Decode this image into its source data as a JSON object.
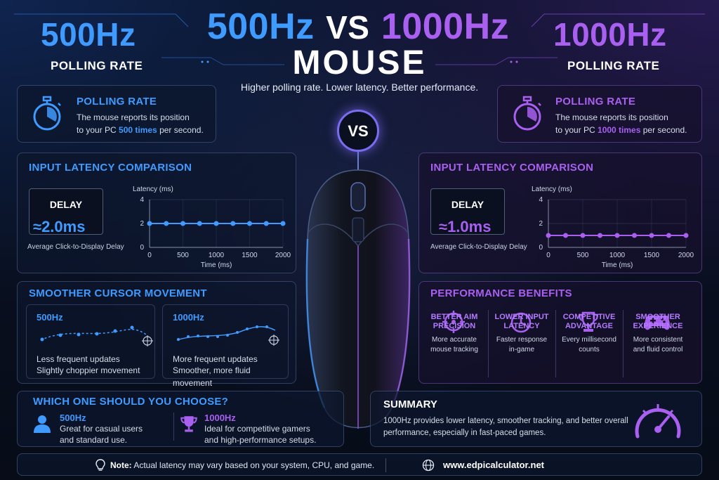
{
  "colors": {
    "blue": "#3f9bff",
    "purple": "#a960f0",
    "background": "#070c18"
  },
  "header": {
    "title_left": "500Hz",
    "title_vs": "VS",
    "title_right": "1000Hz",
    "title_line2": "MOUSE",
    "tagline": "Higher polling rate. Lower latency. Better performance.",
    "left_hz": "500Hz",
    "left_label": "POLLING RATE",
    "right_hz": "1000Hz",
    "right_label": "POLLING RATE"
  },
  "center": {
    "vs_badge": "VS"
  },
  "polling_left": {
    "title": "POLLING RATE",
    "line1": "The mouse reports its position",
    "line2_pre": "to your PC ",
    "line2_value": "500 times",
    "line2_post": " per second.",
    "icon": "stopwatch-icon"
  },
  "polling_right": {
    "title": "POLLING RATE",
    "line1": "The mouse reports its position",
    "line2_pre": "to your PC ",
    "line2_value": "1000 times",
    "line2_post": " per second.",
    "icon": "stopwatch-icon"
  },
  "latency_left": {
    "title": "INPUT LATENCY COMPARISON",
    "delay_label": "DELAY",
    "delay_value": "≈2.0ms",
    "caption": "Average Click-to-Display Delay"
  },
  "latency_right": {
    "title": "INPUT LATENCY COMPARISON",
    "delay_label": "DELAY",
    "delay_value": "≈1.0ms",
    "caption": "Average Click-to-Display Delay"
  },
  "chart_data": [
    {
      "type": "line",
      "title": "",
      "ylabel": "Latency (ms)",
      "xlabel": "Time (ms)",
      "ylim": [
        0,
        4
      ],
      "xlim": [
        0,
        2000
      ],
      "yticks": [
        "0",
        "2",
        "4"
      ],
      "xticks": [
        "0",
        "500",
        "1000",
        "1500",
        "2000"
      ],
      "grid": true,
      "color": "#3f9bff",
      "x": [
        0,
        250,
        500,
        750,
        1000,
        1250,
        1500,
        1750,
        2000
      ],
      "values": [
        2,
        2,
        2,
        2,
        2,
        2,
        2,
        2,
        2
      ]
    },
    {
      "type": "line",
      "title": "",
      "ylabel": "Latency (ms)",
      "xlabel": "Time (ms)",
      "ylim": [
        0,
        4
      ],
      "xlim": [
        0,
        2000
      ],
      "yticks": [
        "0",
        "2",
        "4"
      ],
      "xticks": [
        "0",
        "500",
        "1000",
        "1500",
        "2000"
      ],
      "grid": true,
      "color": "#a960f0",
      "x": [
        0,
        250,
        500,
        750,
        1000,
        1250,
        1500,
        1750,
        2000
      ],
      "values": [
        1,
        1,
        1,
        1,
        1,
        1,
        1,
        1,
        1
      ]
    }
  ],
  "cursor": {
    "title": "SMOOTHER CURSOR MOVEMENT",
    "left": {
      "hz": "500Hz",
      "line1": "Less frequent updates",
      "line2": "Slightly choppier movement"
    },
    "right": {
      "hz": "1000Hz",
      "line1": "More frequent updates",
      "line2": "Smoother, more fluid movement"
    }
  },
  "benefits": {
    "title": "PERFORMANCE BENEFITS",
    "items": [
      {
        "icon": "crosshair-icon",
        "h1": "BETTER AIM",
        "h2": "PRECISION",
        "d1": "More accurate",
        "d2": "mouse tracking"
      },
      {
        "icon": "clock-icon",
        "h1": "LOWER INPUT",
        "h2": "LATENCY",
        "d1": "Faster response",
        "d2": "in-game"
      },
      {
        "icon": "trophy-icon",
        "h1": "COMPETITIVE",
        "h2": "ADVANTAGE",
        "d1": "Every millisecond",
        "d2": "counts"
      },
      {
        "icon": "gamepad-icon",
        "h1": "SMOOTHER",
        "h2": "EXPERIENCE",
        "d1": "More consistent",
        "d2": "and fluid control"
      }
    ]
  },
  "choose": {
    "title": "WHICH ONE SHOULD YOU CHOOSE?",
    "left": {
      "hz": "500Hz",
      "line1": "Great for casual users",
      "line2": "and standard use.",
      "icon": "user-icon"
    },
    "right": {
      "hz": "1000Hz",
      "line1": "Ideal for competitive gamers",
      "line2": "and high-performance setups.",
      "icon": "trophy-icon"
    }
  },
  "summary": {
    "title": "SUMMARY",
    "line1": "1000Hz provides lower latency, smoother tracking, and better overall",
    "line2": "performance, especially in fast-paced games.",
    "icon": "speedometer-icon"
  },
  "footer": {
    "note_label": "Note:",
    "note_text": " Actual latency may vary based on your system, CPU, and game.",
    "website": "www.edpicalculator.net"
  }
}
